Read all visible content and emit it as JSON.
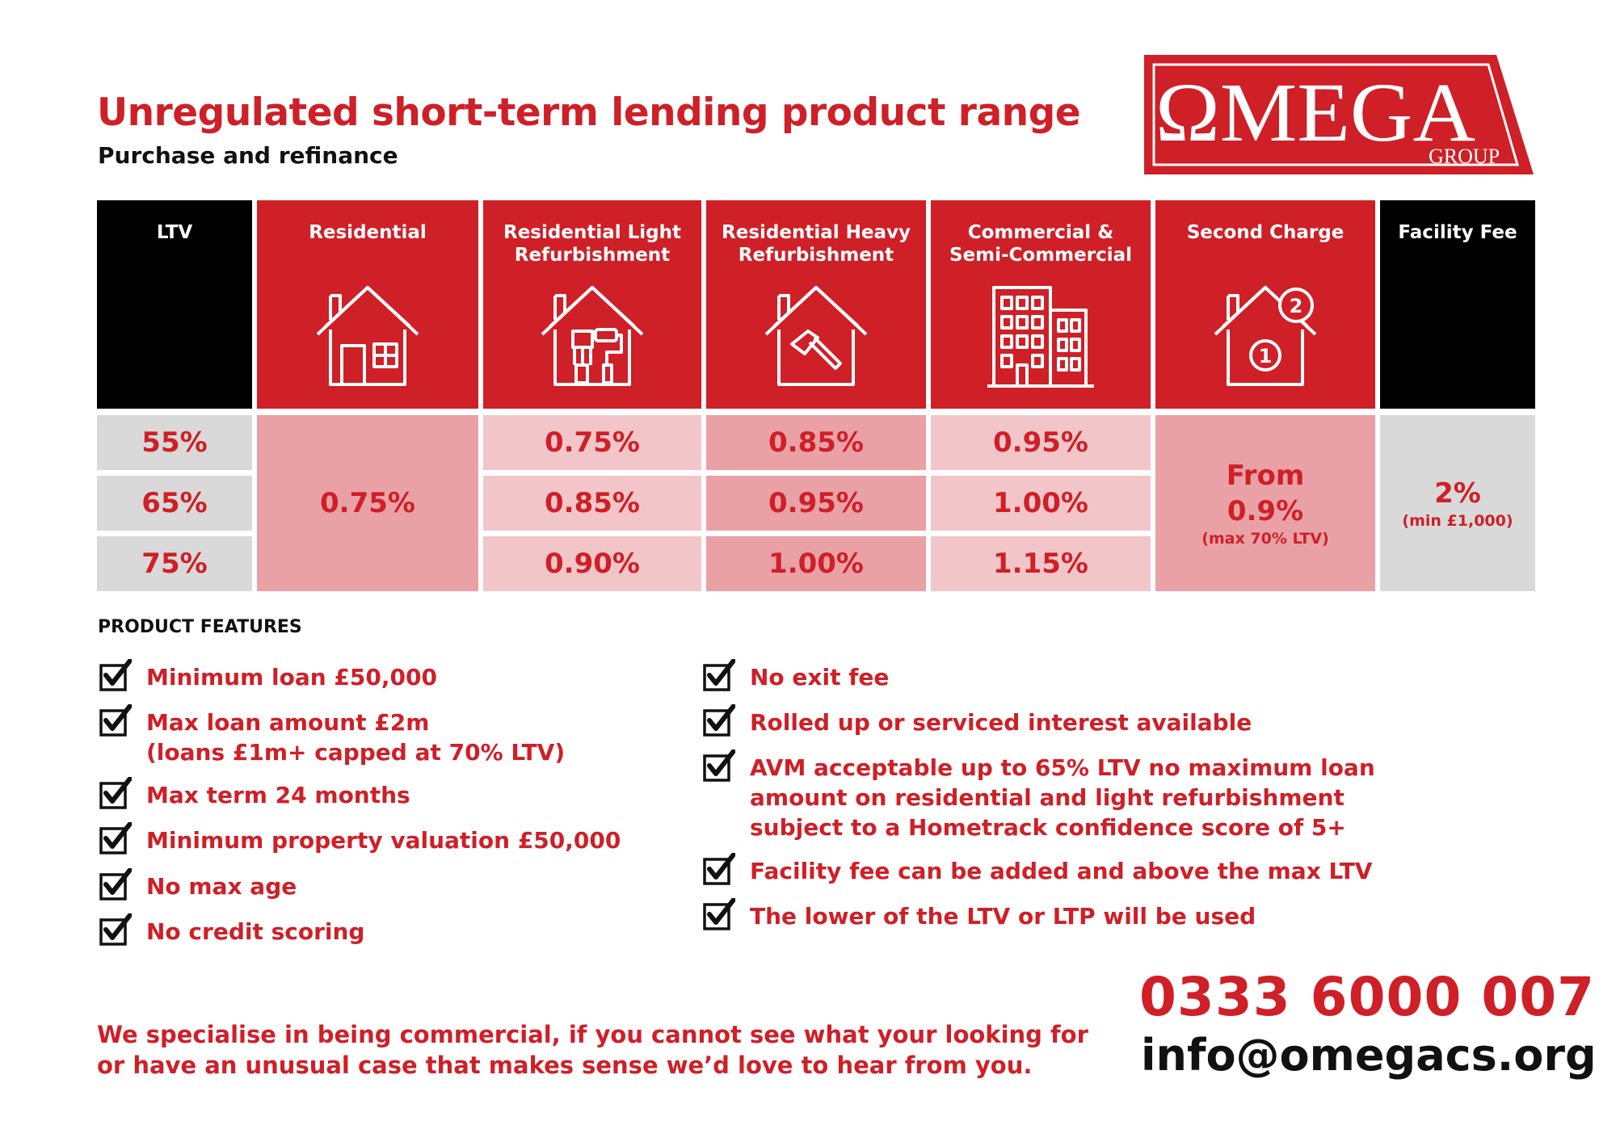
{
  "header": {
    "title": "Unregulated short-term lending product range",
    "subtitle": "Purchase and refinance"
  },
  "logo": {
    "word": "ΩMEGA",
    "group": "GROUP"
  },
  "colors": {
    "brand_red": "#cf1f27",
    "pink_light": "#f2c6c9",
    "pink_mid": "#e9a1a6",
    "grey": "#d9d9d9",
    "black": "#000000"
  },
  "table": {
    "columns": [
      {
        "label": "LTV",
        "icon": ""
      },
      {
        "label": "Residential",
        "icon": "house-icon"
      },
      {
        "label": "Residential Light\nRefurbishment",
        "icon": "house-paintbrush-icon"
      },
      {
        "label": "Residential Heavy\nRefurbishment",
        "icon": "house-hammer-icon"
      },
      {
        "label": "Commercial &\nSemi-Commercial",
        "icon": "office-buildings-icon"
      },
      {
        "label": "Second Charge",
        "icon": "house-second-charge-icon"
      },
      {
        "label": "Facility Fee",
        "icon": ""
      }
    ],
    "ltv": [
      "55%",
      "65%",
      "75%"
    ],
    "residential": "0.75%",
    "light_refurb": [
      "0.75%",
      "0.85%",
      "0.90%"
    ],
    "heavy_refurb": [
      "0.85%",
      "0.95%",
      "1.00%"
    ],
    "commercial": [
      "0.95%",
      "1.00%",
      "1.15%"
    ],
    "second_charge": {
      "line1": "From",
      "line2": "0.9%",
      "note": "(max 70% LTV)"
    },
    "facility_fee": {
      "value": "2%",
      "note": "(min £1,000)"
    }
  },
  "features": {
    "title": "PRODUCT FEATURES",
    "left": [
      "Minimum loan £50,000",
      "Max loan amount £2m\n(loans £1m+ capped at 70% LTV)",
      "Max term 24 months",
      "Minimum property valuation £50,000",
      "No max age",
      "No credit scoring"
    ],
    "right": [
      "No exit fee",
      "Rolled up or serviced interest available",
      "AVM acceptable up to 65% LTV no maximum loan\namount on residential and light refurbishment\nsubject to a Hometrack confidence score of 5+",
      "Facility fee can be added and above the max LTV",
      "The lower of the LTV or LTP will be used"
    ]
  },
  "footer": {
    "note": "We specialise in being commercial, if you cannot see what your looking for\nor have an unusual case that makes sense we’d love to hear from you.",
    "phone": "0333 6000 007",
    "email": "info@omegacs.org"
  }
}
